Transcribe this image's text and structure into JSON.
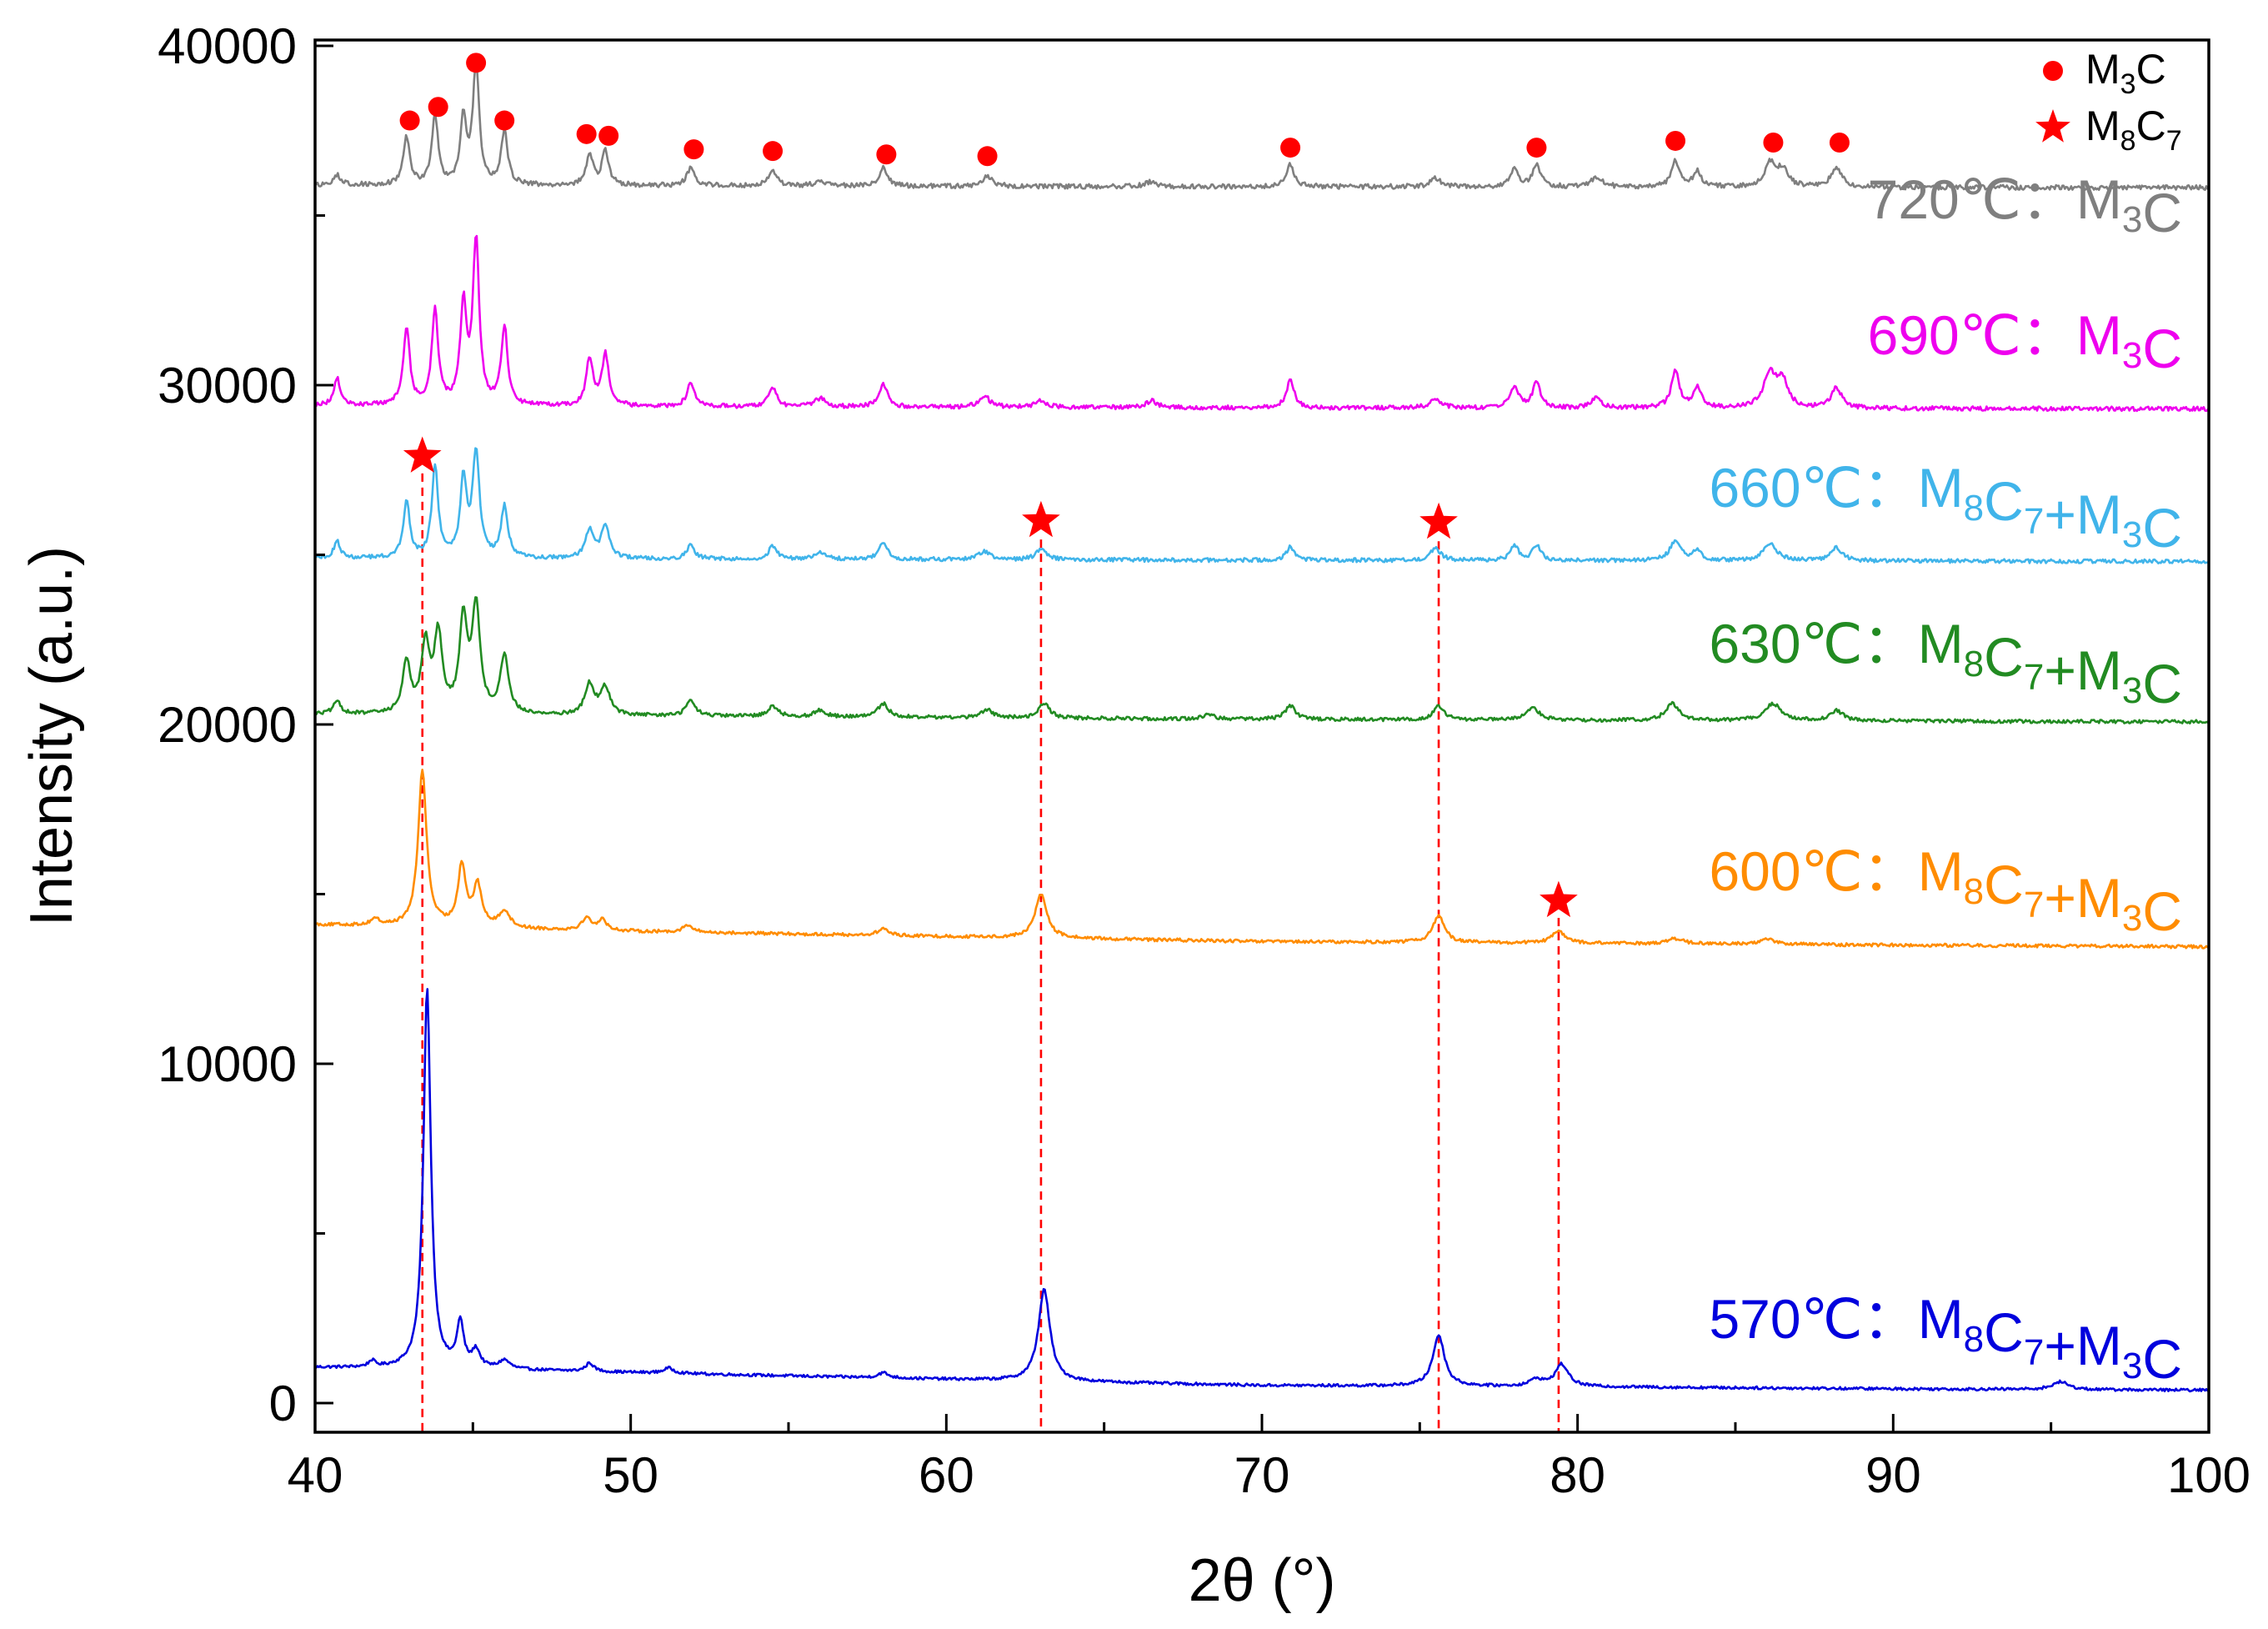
{
  "chart_data": {
    "type": "line",
    "title": "",
    "xlabel": "2θ (°)",
    "ylabel": "Intensity (a.u.)",
    "xlim": [
      40,
      100
    ],
    "ylim": [
      -800,
      40000
    ],
    "x_ticks": [
      40,
      50,
      60,
      70,
      80,
      90,
      100
    ],
    "y_ticks": [
      0,
      10000,
      20000,
      30000,
      40000
    ],
    "grid": false,
    "legend_position": "top-right",
    "legend": [
      {
        "marker": "circle",
        "color": "#ff0000",
        "label_main": "M",
        "label_sub": "3",
        "label_tail": "C"
      },
      {
        "marker": "star",
        "color": "#ff0000",
        "label_main": "M",
        "label_sub": "8",
        "label_tail": "C",
        "label_sub2": "7"
      }
    ],
    "series": [
      {
        "name": "570℃",
        "color": "#0000dd",
        "baseline": [
          [
            40,
            1050
          ],
          [
            45,
            1000
          ],
          [
            60,
            700
          ],
          [
            70,
            520
          ],
          [
            80,
            480
          ],
          [
            90,
            420
          ],
          [
            100,
            380
          ]
        ],
        "peaks": [
          [
            41.8,
            180,
            0.12
          ],
          [
            43.55,
            11200,
            0.14
          ],
          [
            44.6,
            1300,
            0.13
          ],
          [
            45.1,
            500,
            0.15
          ],
          [
            46.0,
            250,
            0.2
          ],
          [
            48.7,
            250,
            0.15
          ],
          [
            51.2,
            150,
            0.2
          ],
          [
            58.0,
            150,
            0.2
          ],
          [
            63.1,
            2700,
            0.22
          ],
          [
            75.6,
            1500,
            0.22
          ],
          [
            78.7,
            200,
            0.25
          ],
          [
            79.5,
            650,
            0.25
          ],
          [
            95.3,
            230,
            0.3
          ]
        ],
        "label_temp": "570℃：",
        "label_phase": "M8C7+M3C"
      },
      {
        "name": "600℃",
        "color": "#ff8c00",
        "baseline": [
          [
            40,
            14100
          ],
          [
            50,
            13900
          ],
          [
            60,
            13750
          ],
          [
            70,
            13600
          ],
          [
            80,
            13550
          ],
          [
            90,
            13500
          ],
          [
            100,
            13450
          ]
        ],
        "peaks": [
          [
            41.9,
            200,
            0.15
          ],
          [
            43.4,
            4600,
            0.16
          ],
          [
            44.65,
            1800,
            0.15
          ],
          [
            45.15,
            1200,
            0.16
          ],
          [
            46.0,
            500,
            0.2
          ],
          [
            48.6,
            350,
            0.18
          ],
          [
            49.1,
            300,
            0.18
          ],
          [
            51.8,
            200,
            0.2
          ],
          [
            58.0,
            200,
            0.2
          ],
          [
            63.0,
            1300,
            0.22
          ],
          [
            75.6,
            800,
            0.22
          ],
          [
            79.4,
            350,
            0.25
          ],
          [
            83.1,
            150,
            0.3
          ],
          [
            86.0,
            150,
            0.3
          ]
        ],
        "label_temp": "600℃：",
        "label_phase": "M8C7+M3C"
      },
      {
        "name": "630℃",
        "color": "#228b22",
        "baseline": [
          [
            40,
            20300
          ],
          [
            50,
            20250
          ],
          [
            60,
            20200
          ],
          [
            70,
            20150
          ],
          [
            80,
            20120
          ],
          [
            90,
            20100
          ],
          [
            100,
            20080
          ]
        ],
        "peaks": [
          [
            40.7,
            350,
            0.15
          ],
          [
            42.9,
            1500,
            0.15
          ],
          [
            43.5,
            2000,
            0.15
          ],
          [
            43.9,
            2300,
            0.15
          ],
          [
            44.7,
            2700,
            0.15
          ],
          [
            45.1,
            3100,
            0.15
          ],
          [
            46.0,
            1700,
            0.16
          ],
          [
            48.7,
            900,
            0.18
          ],
          [
            49.2,
            800,
            0.18
          ],
          [
            51.9,
            450,
            0.18
          ],
          [
            54.5,
            300,
            0.2
          ],
          [
            56.0,
            200,
            0.2
          ],
          [
            58.0,
            400,
            0.2
          ],
          [
            61.3,
            250,
            0.2
          ],
          [
            63.1,
            450,
            0.2
          ],
          [
            68.3,
            150,
            0.2
          ],
          [
            70.9,
            400,
            0.2
          ],
          [
            75.6,
            400,
            0.2
          ],
          [
            78.6,
            350,
            0.25
          ],
          [
            83.0,
            500,
            0.25
          ],
          [
            86.2,
            500,
            0.3
          ],
          [
            88.2,
            300,
            0.25
          ]
        ],
        "label_temp": "630℃：",
        "label_phase": "M8C7+M3C"
      },
      {
        "name": "660℃",
        "color": "#40b4ea",
        "baseline": [
          [
            40,
            24900
          ],
          [
            50,
            24880
          ],
          [
            60,
            24860
          ],
          [
            70,
            24840
          ],
          [
            80,
            24830
          ],
          [
            90,
            24820
          ],
          [
            100,
            24800
          ]
        ],
        "peaks": [
          [
            40.7,
            500,
            0.12
          ],
          [
            42.9,
            1700,
            0.12
          ],
          [
            43.8,
            2700,
            0.12
          ],
          [
            44.7,
            2300,
            0.12
          ],
          [
            45.1,
            3100,
            0.13
          ],
          [
            46.0,
            1500,
            0.13
          ],
          [
            48.7,
            850,
            0.15
          ],
          [
            49.2,
            1000,
            0.15
          ],
          [
            51.9,
            400,
            0.15
          ],
          [
            54.5,
            400,
            0.15
          ],
          [
            56.0,
            200,
            0.2
          ],
          [
            58.0,
            500,
            0.15
          ],
          [
            61.2,
            250,
            0.2
          ],
          [
            63.0,
            300,
            0.2
          ],
          [
            70.9,
            400,
            0.15
          ],
          [
            75.5,
            350,
            0.2
          ],
          [
            78.0,
            450,
            0.15
          ],
          [
            78.7,
            450,
            0.15
          ],
          [
            83.1,
            600,
            0.2
          ],
          [
            83.8,
            300,
            0.15
          ],
          [
            86.1,
            500,
            0.25
          ],
          [
            88.2,
            400,
            0.2
          ]
        ],
        "label_temp": "660℃：",
        "label_phase": "M8C7+M3C"
      },
      {
        "name": "690℃",
        "color": "#ee00ee",
        "baseline": [
          [
            40,
            29400
          ],
          [
            50,
            29370
          ],
          [
            60,
            29350
          ],
          [
            70,
            29330
          ],
          [
            80,
            29320
          ],
          [
            90,
            29310
          ],
          [
            100,
            29300
          ]
        ],
        "peaks": [
          [
            40.7,
            800,
            0.12
          ],
          [
            42.9,
            2300,
            0.12
          ],
          [
            43.8,
            2800,
            0.12
          ],
          [
            44.7,
            2900,
            0.12
          ],
          [
            45.1,
            4800,
            0.12
          ],
          [
            46.0,
            2300,
            0.12
          ],
          [
            48.7,
            1400,
            0.13
          ],
          [
            49.2,
            1500,
            0.13
          ],
          [
            51.9,
            650,
            0.15
          ],
          [
            54.5,
            550,
            0.15
          ],
          [
            56.0,
            250,
            0.2
          ],
          [
            58.0,
            700,
            0.15
          ],
          [
            61.2,
            350,
            0.2
          ],
          [
            63.0,
            200,
            0.2
          ],
          [
            66.5,
            200,
            0.2
          ],
          [
            70.9,
            800,
            0.15
          ],
          [
            75.5,
            300,
            0.2
          ],
          [
            78.0,
            650,
            0.15
          ],
          [
            78.7,
            750,
            0.15
          ],
          [
            80.6,
            300,
            0.2
          ],
          [
            83.1,
            1100,
            0.15
          ],
          [
            83.8,
            600,
            0.15
          ],
          [
            86.1,
            1000,
            0.25
          ],
          [
            86.5,
            700,
            0.2
          ],
          [
            88.2,
            600,
            0.2
          ]
        ],
        "label_temp": "690℃：",
        "label_phase": "M3C"
      },
      {
        "name": "720℃",
        "color": "#7f7f7f",
        "baseline": [
          [
            40,
            35900
          ],
          [
            50,
            35880
          ],
          [
            60,
            35860
          ],
          [
            70,
            35850
          ],
          [
            80,
            35840
          ],
          [
            90,
            35830
          ],
          [
            100,
            35820
          ]
        ],
        "peaks": [
          [
            40.7,
            300,
            0.12
          ],
          [
            42.9,
            1400,
            0.12
          ],
          [
            43.8,
            2000,
            0.12
          ],
          [
            44.7,
            1900,
            0.12
          ],
          [
            45.1,
            3500,
            0.12
          ],
          [
            46.0,
            1600,
            0.12
          ],
          [
            48.7,
            900,
            0.13
          ],
          [
            49.2,
            1000,
            0.13
          ],
          [
            51.9,
            500,
            0.15
          ],
          [
            54.5,
            450,
            0.15
          ],
          [
            56.0,
            150,
            0.2
          ],
          [
            58.0,
            550,
            0.15
          ],
          [
            61.3,
            300,
            0.2
          ],
          [
            66.5,
            150,
            0.2
          ],
          [
            70.9,
            650,
            0.15
          ],
          [
            75.5,
            250,
            0.2
          ],
          [
            78.0,
            500,
            0.15
          ],
          [
            78.7,
            650,
            0.15
          ],
          [
            80.6,
            300,
            0.2
          ],
          [
            83.1,
            750,
            0.15
          ],
          [
            83.8,
            450,
            0.15
          ],
          [
            86.1,
            700,
            0.2
          ],
          [
            86.5,
            500,
            0.2
          ],
          [
            88.2,
            600,
            0.2
          ]
        ],
        "label_temp": "720℃：",
        "label_phase": "M3C"
      }
    ],
    "annotations": {
      "m3c_circles": [
        [
          43.0,
          37800
        ],
        [
          43.9,
          38200
        ],
        [
          45.1,
          39500
        ],
        [
          46.0,
          37800
        ],
        [
          48.6,
          37400
        ],
        [
          49.3,
          37350
        ],
        [
          52.0,
          36950
        ],
        [
          54.5,
          36900
        ],
        [
          58.1,
          36800
        ],
        [
          61.3,
          36750
        ],
        [
          70.9,
          37000
        ],
        [
          78.7,
          37000
        ],
        [
          83.1,
          37200
        ],
        [
          86.2,
          37150
        ],
        [
          88.3,
          37150
        ]
      ],
      "m8c7_stars": [
        [
          43.4,
          27900
        ],
        [
          63.0,
          26000
        ],
        [
          75.6,
          25950
        ],
        [
          79.4,
          14800
        ]
      ],
      "dashed_lines": [
        [
          43.4,
          27400
        ],
        [
          63.0,
          25450
        ],
        [
          75.6,
          25400
        ],
        [
          79.4,
          14300
        ]
      ]
    }
  }
}
